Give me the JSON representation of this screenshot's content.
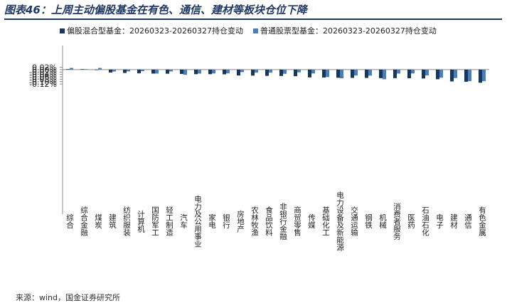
{
  "figure": {
    "title": "图表46：上周主动偏股基金在有色、通信、建材等板块仓位下降",
    "source": "来源：wind，国金证券研究所"
  },
  "chart_data": {
    "type": "bar",
    "categories": [
      "综合",
      "综合金融",
      "煤炭",
      "建筑",
      "纺织服装",
      "计算机",
      "国防军工",
      "轻工制造",
      "汽车",
      "电力及公用事业",
      "家电",
      "银行",
      "房地产",
      "农林牧渔",
      "食品饮料",
      "非银行金融",
      "商贸零售",
      "传媒",
      "基础化工",
      "电力设备及新能源",
      "交通运输",
      "钢铁",
      "机械",
      "消费者服务",
      "医药",
      "石油石化",
      "电子",
      "建材",
      "通信",
      "有色金属"
    ],
    "series": [
      {
        "name": "偏股混合型基金：20260323-20260327持仓变动",
        "color": "#17375e",
        "values": [
          0.0004,
          0.0004,
          -0.0004,
          -0.0024,
          -0.0028,
          -0.0031,
          -0.0033,
          -0.0034,
          -0.0036,
          -0.0038,
          -0.0038,
          -0.0039,
          -0.0049,
          -0.005,
          -0.0052,
          -0.0053,
          -0.0055,
          -0.0065,
          -0.0066,
          -0.0068,
          -0.0069,
          -0.0069,
          -0.0071,
          -0.0071,
          -0.0072,
          -0.0074,
          -0.008,
          -0.0098,
          -0.0101,
          -0.0109
        ]
      },
      {
        "name": "普通股票型基金：20260323-20260327持仓变动",
        "color": "#4a7ebb",
        "values": [
          0.0014,
          0.0004,
          0.0014,
          -0.0016,
          -0.0015,
          -0.0013,
          -0.0033,
          -0.0015,
          -0.0043,
          -0.0033,
          -0.0032,
          -0.0031,
          -0.0021,
          -0.0025,
          -0.0025,
          -0.0035,
          -0.0023,
          -0.0032,
          -0.0062,
          -0.0072,
          -0.0049,
          -0.005,
          -0.008,
          -0.0033,
          -0.0032,
          -0.0048,
          -0.0067,
          -0.007,
          -0.0096,
          -0.0096
        ]
      }
    ],
    "y_ticks": [
      "0.02%",
      "0.00%",
      "-0.02%",
      "-0.04%",
      "-0.06%",
      "-0.08%",
      "-0.10%",
      "-0.12%"
    ],
    "ylim": [
      -0.012,
      0.002
    ],
    "grid": false,
    "legend_position": "top"
  }
}
